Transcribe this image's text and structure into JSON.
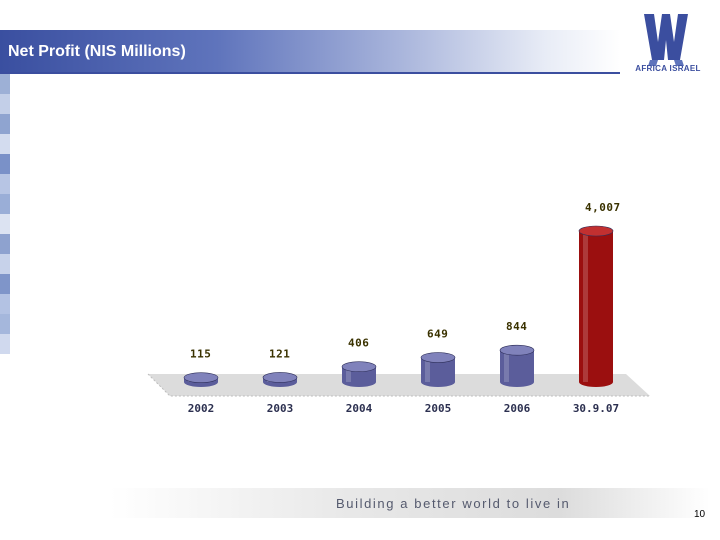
{
  "slide": {
    "title": "Net Profit (NIS Millions)",
    "logo_text": "AFRICA ISRAEL",
    "slogan": "Building a better world to live in",
    "page_number": "10"
  },
  "colors": {
    "bar_default": "#5b5d9b",
    "bar_highlight": "#9b0f0f",
    "label": "#3a3200",
    "accent": "#3b4e9f"
  },
  "chart_data": {
    "type": "bar",
    "title": "Net Profit (NIS Millions)",
    "categories": [
      "2002",
      "2003",
      "2004",
      "2005",
      "2006",
      "30.9.07"
    ],
    "values": [
      115,
      121,
      406,
      649,
      844,
      4007
    ],
    "value_labels": [
      "115",
      "121",
      "406",
      "649",
      "844",
      "4,007"
    ],
    "highlight_index": 5,
    "style": "3d-cylinder",
    "grid": false,
    "legend": "none"
  }
}
